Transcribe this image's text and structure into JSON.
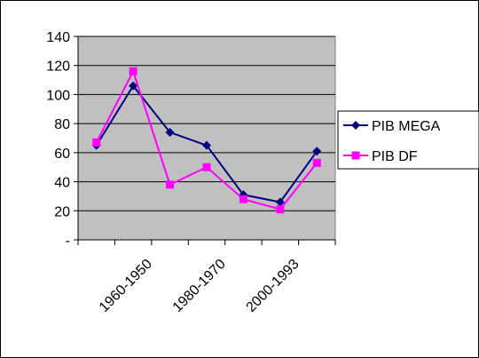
{
  "chart_data": {
    "type": "line",
    "title": "",
    "xlabel": "",
    "ylabel": "",
    "ylim": [
      0,
      140
    ],
    "y_ticks": [
      {
        "value": 0,
        "label": "-"
      },
      {
        "value": 20,
        "label": "20"
      },
      {
        "value": 40,
        "label": "40"
      },
      {
        "value": 60,
        "label": "60"
      },
      {
        "value": 80,
        "label": "80"
      },
      {
        "value": 100,
        "label": "100"
      },
      {
        "value": 120,
        "label": "120"
      },
      {
        "value": 140,
        "label": "140"
      }
    ],
    "x_tick_labels": [
      {
        "label": "1960-1950",
        "index": 1
      },
      {
        "label": "1980-1970",
        "index": 3
      },
      {
        "label": "2000-1993",
        "index": 5
      }
    ],
    "point_count": 7,
    "grid": true,
    "plot_background": "#c0c0c0",
    "legend_position": "right",
    "series": [
      {
        "name": "PIB MEGA",
        "color": "#000080",
        "marker": "diamond",
        "values": [
          65,
          106,
          74,
          65,
          31,
          26,
          61
        ]
      },
      {
        "name": "PIB DF",
        "color": "#ff00ff",
        "marker": "square",
        "values": [
          67,
          116,
          38,
          50,
          28,
          21,
          53
        ]
      }
    ]
  }
}
